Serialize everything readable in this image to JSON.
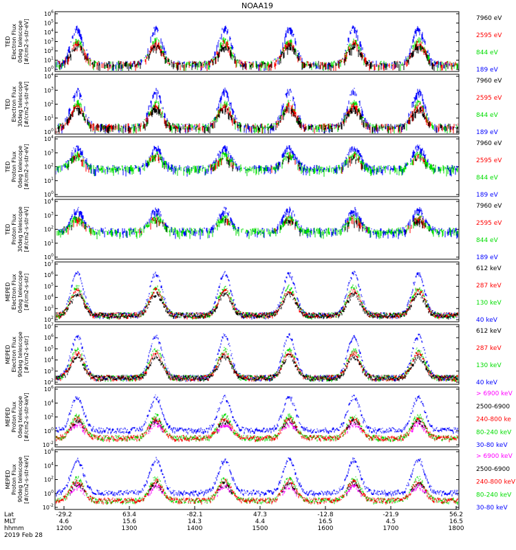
{
  "title": "NOAA19",
  "colors": {
    "black": "#000000",
    "red": "#ff0000",
    "green": "#00dd00",
    "blue": "#0000ff",
    "magenta": "#ff00ff"
  },
  "chart_data": [
    {
      "type": "scatter",
      "ylabel": [
        "TED",
        "Electron Flux",
        "0deg telescope",
        "[#/cm2-s-str-eV]"
      ],
      "yscale": "log",
      "ylim": [
        1,
        1000000
      ],
      "yticks": [
        "10^6",
        "10^5",
        "10^4",
        "10^3",
        "10^2",
        "10^1",
        "10^0"
      ],
      "legend": [
        {
          "label": "7960 eV",
          "color": "black"
        },
        {
          "label": "2595 eV",
          "color": "red"
        },
        {
          "label": "844 eV",
          "color": "green"
        },
        {
          "label": "189 eV",
          "color": "blue"
        }
      ]
    },
    {
      "type": "scatter",
      "ylabel": [
        "TED",
        "Electron Flux",
        "30deg telescope",
        "[#/cm2-s-str-eV]"
      ],
      "yscale": "log",
      "ylim": [
        1,
        100000
      ],
      "yticks": [
        "10^4",
        "10^3",
        "10^2",
        "10^1",
        "10^0"
      ],
      "legend": [
        {
          "label": "7960 eV",
          "color": "black"
        },
        {
          "label": "2595 eV",
          "color": "red"
        },
        {
          "label": "844 eV",
          "color": "green"
        },
        {
          "label": "189 eV",
          "color": "blue"
        }
      ]
    },
    {
      "type": "scatter",
      "ylabel": [
        "TED",
        "Proton Flux",
        "0deg telescope",
        "[#/cm2-s-str-eV]"
      ],
      "yscale": "log",
      "ylim": [
        1,
        100000
      ],
      "yticks": [
        "10^4",
        "10^3",
        "10^2",
        "10^1",
        "10^0"
      ],
      "legend": [
        {
          "label": "7960 eV",
          "color": "black"
        },
        {
          "label": "2595 eV",
          "color": "red"
        },
        {
          "label": "844 eV",
          "color": "green"
        },
        {
          "label": "189 eV",
          "color": "blue"
        }
      ]
    },
    {
      "type": "scatter",
      "ylabel": [
        "TED",
        "Proton Flux",
        "30deg telescope",
        "[#/cm2-s-str-eV]"
      ],
      "yscale": "log",
      "ylim": [
        1,
        100000
      ],
      "yticks": [
        "10^4",
        "10^3",
        "10^2",
        "10^1",
        "10^0"
      ],
      "legend": [
        {
          "label": "7960 eV",
          "color": "black"
        },
        {
          "label": "2595 eV",
          "color": "red"
        },
        {
          "label": "844 eV",
          "color": "green"
        },
        {
          "label": "189 eV",
          "color": "blue"
        }
      ]
    },
    {
      "type": "scatter",
      "ylabel": [
        "MEPED",
        "Electron Flux",
        "0deg telescope",
        "[#/cm2-s-str]"
      ],
      "yscale": "log",
      "ylim": [
        100,
        10000000
      ],
      "yticks": [
        "10^7",
        "10^6",
        "10^5",
        "10^4",
        "10^3",
        "10^2"
      ],
      "legend": [
        {
          "label": "612 keV",
          "color": "black"
        },
        {
          "label": "287 keV",
          "color": "red"
        },
        {
          "label": "130 keV",
          "color": "green"
        },
        {
          "label": "40 keV",
          "color": "blue"
        }
      ]
    },
    {
      "type": "scatter",
      "ylabel": [
        "MEPED",
        "Electron Flux",
        "90deg telescope",
        "[#/cm2-s-str]"
      ],
      "yscale": "log",
      "ylim": [
        100,
        10000000
      ],
      "yticks": [
        "10^7",
        "10^6",
        "10^5",
        "10^4",
        "10^3",
        "10^2"
      ],
      "legend": [
        {
          "label": "612 keV",
          "color": "black"
        },
        {
          "label": "287 keV",
          "color": "red"
        },
        {
          "label": "130 keV",
          "color": "green"
        },
        {
          "label": "40 keV",
          "color": "blue"
        }
      ]
    },
    {
      "type": "scatter",
      "ylabel": [
        "MEPED",
        "Proton Flux",
        "0deg telescope",
        "[#/cm2-s-str-keV]"
      ],
      "yscale": "log",
      "ylim": [
        0.01,
        1000000
      ],
      "yticks": [
        "10^6",
        "10^4",
        "10^2",
        "10^0",
        "10^-2"
      ],
      "legend": [
        {
          "label": "> 6900 keV",
          "color": "magenta"
        },
        {
          "label": "2500-6900",
          "color": "black"
        },
        {
          "label": "240-800 ke",
          "color": "red"
        },
        {
          "label": "80-240 keV",
          "color": "green"
        },
        {
          "label": "30-80 keV",
          "color": "blue"
        }
      ]
    },
    {
      "type": "scatter",
      "ylabel": [
        "MEPED",
        "Proton Flux",
        "90deg telescope",
        "[#/cm2-s-str-keV]"
      ],
      "yscale": "log",
      "ylim": [
        0.01,
        1000000
      ],
      "yticks": [
        "10^6",
        "10^4",
        "10^2",
        "10^0",
        "10^-2"
      ],
      "legend": [
        {
          "label": "> 6900 keV",
          "color": "magenta"
        },
        {
          "label": "2500-6900",
          "color": "black"
        },
        {
          "label": "240-800 keV",
          "color": "red"
        },
        {
          "label": "80-240 keV",
          "color": "green"
        },
        {
          "label": "30-80 keV",
          "color": "blue"
        }
      ]
    }
  ],
  "xaxis": {
    "row_labels": [
      "Lat",
      "MLT",
      "hhmm",
      "2019 Feb 28"
    ],
    "columns": [
      {
        "lat": "-29.2",
        "mlt": "4.6",
        "hhmm": "1200"
      },
      {
        "lat": "63.4",
        "mlt": "15.6",
        "hhmm": "1300"
      },
      {
        "lat": "-82.1",
        "mlt": "14.3",
        "hhmm": "1400"
      },
      {
        "lat": "47.3",
        "mlt": "4.4",
        "hhmm": "1500"
      },
      {
        "lat": "-12.8",
        "mlt": "16.5",
        "hhmm": "1600"
      },
      {
        "lat": "-21.9",
        "mlt": "4.5",
        "hhmm": "1700"
      },
      {
        "lat": "56.2",
        "mlt": "16.5",
        "hhmm": "1800"
      }
    ]
  }
}
